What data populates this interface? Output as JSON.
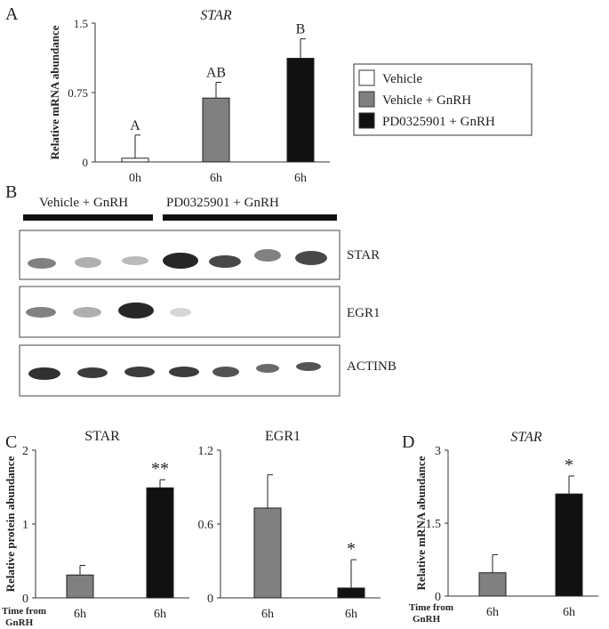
{
  "colors": {
    "vehicle": "#ffffff",
    "vehicle_gnrh": "#808080",
    "pd_gnrh": "#111111",
    "axis": "#333333",
    "text": "#222222"
  },
  "panels": {
    "a": "A",
    "b": "B",
    "c": "C",
    "d": "D"
  },
  "legend": {
    "items": [
      "Vehicle",
      "Vehicle + GnRH",
      "PD0325901 + GnRH"
    ]
  },
  "blot": {
    "group_left": "Vehicle + GnRH",
    "group_right": "PD0325901 + GnRH",
    "rows": [
      "STAR",
      "EGR1",
      "ACTINB"
    ]
  },
  "time_from_gnrh": [
    "Time from",
    "GnRH"
  ],
  "chart_data": [
    {
      "panel": "A",
      "type": "bar",
      "title": "STAR",
      "ylabel": "Relative mRNA abundance",
      "ylim": [
        0,
        1.5
      ],
      "yticks": [
        "0",
        "0.75",
        "1.5"
      ],
      "categories": [
        "0h",
        "6h",
        "6h"
      ],
      "values": [
        0.04,
        0.69,
        1.12
      ],
      "errors": [
        0.25,
        0.17,
        0.21
      ],
      "letters": [
        "A",
        "AB",
        "B"
      ],
      "groups": [
        "vehicle",
        "vehicle_gnrh",
        "pd_gnrh"
      ]
    },
    {
      "panel": "C",
      "type": "bar",
      "title": "STAR",
      "ylabel": "Relative protein abundance",
      "ylim": [
        0,
        2
      ],
      "yticks": [
        "0",
        "1",
        "2"
      ],
      "categories": [
        "6h",
        "6h"
      ],
      "values": [
        0.31,
        1.49
      ],
      "errors": [
        0.13,
        0.11
      ],
      "letters": [
        "",
        "**"
      ],
      "groups": [
        "vehicle_gnrh",
        "pd_gnrh"
      ]
    },
    {
      "panel": "C",
      "type": "bar",
      "title": "EGR1",
      "ylabel": "",
      "ylim": [
        0,
        1.2
      ],
      "yticks": [
        "0",
        "0.6",
        "1.2"
      ],
      "categories": [
        "6h",
        "6h"
      ],
      "values": [
        0.73,
        0.08
      ],
      "errors": [
        0.27,
        0.23
      ],
      "letters": [
        "",
        "*"
      ],
      "groups": [
        "vehicle_gnrh",
        "pd_gnrh"
      ]
    },
    {
      "panel": "D",
      "type": "bar",
      "title": "STAR",
      "ylabel": "Relative mRNA abundance",
      "ylim": [
        0,
        3
      ],
      "yticks": [
        "0",
        "1.5",
        "3"
      ],
      "categories": [
        "6h",
        "6h"
      ],
      "values": [
        0.48,
        2.1
      ],
      "errors": [
        0.37,
        0.37
      ],
      "letters": [
        "",
        "*"
      ],
      "groups": [
        "vehicle_gnrh",
        "pd_gnrh"
      ]
    }
  ]
}
